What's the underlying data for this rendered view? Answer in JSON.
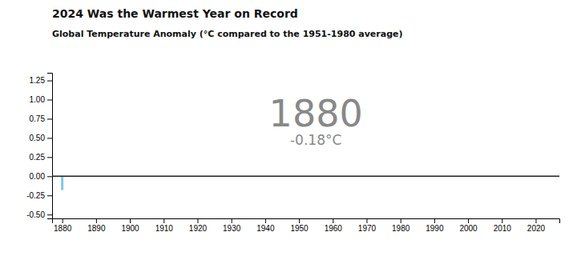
{
  "chart_data": {
    "type": "bar",
    "title": "2024 Was the Warmest Year on Record",
    "subtitle": "Global Temperature Anomaly (°C compared to the 1951-1980 average)",
    "annotations": [
      "1880",
      "-0.18°C"
    ],
    "x": [
      1880
    ],
    "values": [
      -0.18
    ],
    "color": "#7ec8e3",
    "xlim": [
      1877,
      2027
    ],
    "ylim": [
      -0.55,
      1.35
    ],
    "xticks": [
      1880,
      1890,
      1900,
      1910,
      1920,
      1930,
      1940,
      1950,
      1960,
      1970,
      1980,
      1990,
      2000,
      2010,
      2020
    ],
    "yticks": [
      {
        "value": -0.5,
        "label": "-0.50"
      },
      {
        "value": -0.25,
        "label": "-0.25"
      },
      {
        "value": 0,
        "label": "0.00"
      },
      {
        "value": 0.25,
        "label": "0.25"
      },
      {
        "value": 0.5,
        "label": "0.50"
      },
      {
        "value": 0.75,
        "label": "0.75"
      },
      {
        "value": 1,
        "label": "1.00"
      },
      {
        "value": 1.25,
        "label": "1.25"
      }
    ],
    "grid": false
  }
}
